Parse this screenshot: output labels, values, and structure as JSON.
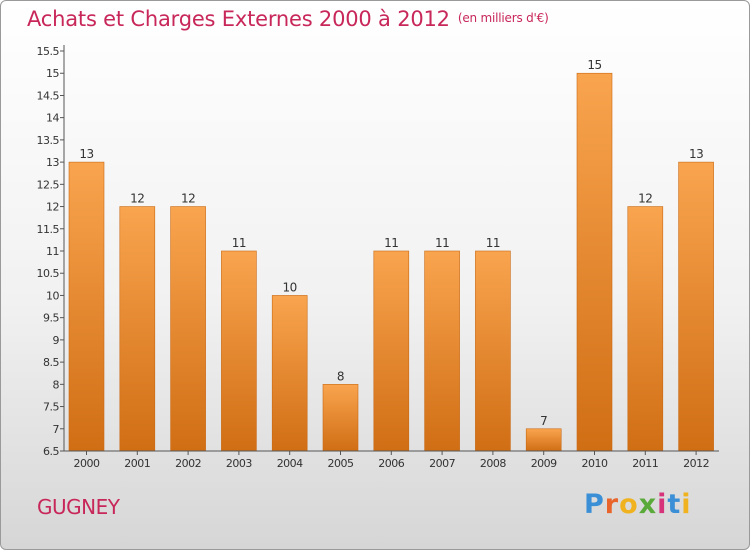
{
  "header": {
    "title": "Achats et Charges Externes 2000 à 2012",
    "subtitle": "(en milliers d'€)"
  },
  "footer": {
    "commune": "GUGNEY",
    "logo_letters": [
      "P",
      "r",
      "o",
      "x",
      "i",
      "t",
      "i"
    ],
    "logo_colors": [
      "#3a8fd6",
      "#e8642a",
      "#f0b21f",
      "#5aaa3a",
      "#d6337a",
      "#3a8fd6",
      "#f0b21f"
    ]
  },
  "colors": {
    "bar_top": "#f9a44f",
    "bar_bottom": "#d06e14",
    "title": "#c8275a",
    "text": "#333333"
  },
  "chart_data": {
    "type": "bar",
    "title": "Achats et Charges Externes 2000 à 2012",
    "subtitle": "(en milliers d'€)",
    "categories": [
      "2000",
      "2001",
      "2002",
      "2003",
      "2004",
      "2005",
      "2006",
      "2007",
      "2008",
      "2009",
      "2010",
      "2011",
      "2012"
    ],
    "values": [
      13,
      12,
      12,
      11,
      10,
      8,
      11,
      11,
      11,
      7,
      15,
      12,
      13
    ],
    "labels": [
      "13",
      "12",
      "12",
      "11",
      "10",
      "8",
      "11",
      "11",
      "11",
      "7",
      "15",
      "12",
      "13"
    ],
    "yticks": [
      "6.5",
      "7",
      "7.5",
      "8",
      "8.5",
      "9",
      "9.5",
      "10",
      "10.5",
      "11",
      "11.5",
      "12",
      "12.5",
      "13",
      "13.5",
      "14",
      "14.5",
      "15",
      "15.5"
    ],
    "ylim": [
      6.5,
      15.5
    ],
    "xlabel": "",
    "ylabel": "",
    "grid": false,
    "legend": "none"
  }
}
